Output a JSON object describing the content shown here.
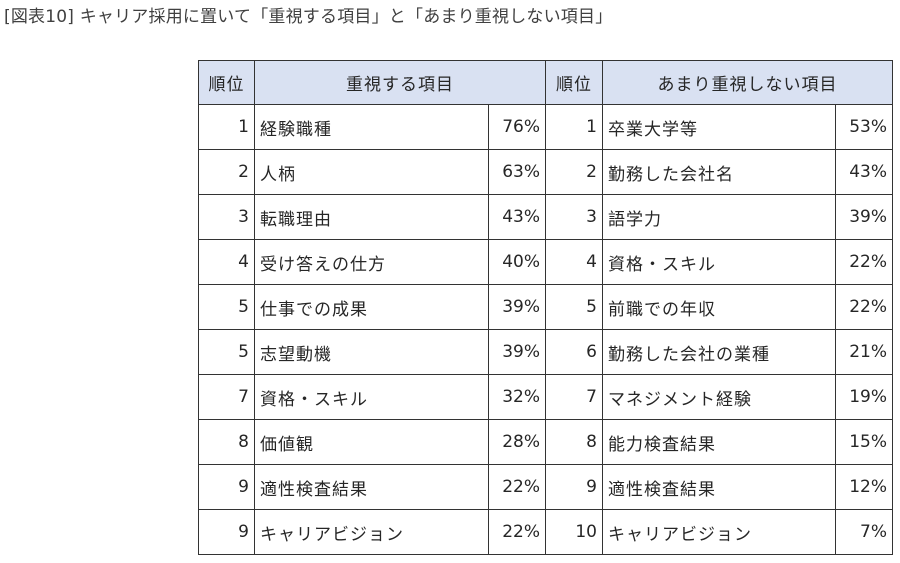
{
  "caption": "[図表10] キャリア採用に置いて「重視する項目」と「あまり重視しない項目」",
  "table": {
    "headers": {
      "rank_left": "順位",
      "item_left": "重視する項目",
      "rank_right": "順位",
      "item_right": "あまり重視しない項目"
    },
    "header_bg": "#d9e1f2",
    "rows": [
      {
        "l_rank": "1",
        "l_item": "経験職種",
        "l_pct": "76%",
        "r_rank": "1",
        "r_item": "卒業大学等",
        "r_pct": "53%"
      },
      {
        "l_rank": "2",
        "l_item": "人柄",
        "l_pct": "63%",
        "r_rank": "2",
        "r_item": "勤務した会社名",
        "r_pct": "43%"
      },
      {
        "l_rank": "3",
        "l_item": "転職理由",
        "l_pct": "43%",
        "r_rank": "3",
        "r_item": "語学力",
        "r_pct": "39%"
      },
      {
        "l_rank": "4",
        "l_item": "受け答えの仕方",
        "l_pct": "40%",
        "r_rank": "4",
        "r_item": "資格・スキル",
        "r_pct": "22%"
      },
      {
        "l_rank": "5",
        "l_item": "仕事での成果",
        "l_pct": "39%",
        "r_rank": "5",
        "r_item": "前職での年収",
        "r_pct": "22%"
      },
      {
        "l_rank": "5",
        "l_item": "志望動機",
        "l_pct": "39%",
        "r_rank": "6",
        "r_item": "勤務した会社の業種",
        "r_pct": "21%"
      },
      {
        "l_rank": "7",
        "l_item": "資格・スキル",
        "l_pct": "32%",
        "r_rank": "7",
        "r_item": "マネジメント経験",
        "r_pct": "19%"
      },
      {
        "l_rank": "8",
        "l_item": "価値観",
        "l_pct": "28%",
        "r_rank": "8",
        "r_item": "能力検査結果",
        "r_pct": "15%"
      },
      {
        "l_rank": "9",
        "l_item": "適性検査結果",
        "l_pct": "22%",
        "r_rank": "9",
        "r_item": "適性検査結果",
        "r_pct": "12%"
      },
      {
        "l_rank": "9",
        "l_item": "キャリアビジョン",
        "l_pct": "22%",
        "r_rank": "10",
        "r_item": "キャリアビジョン",
        "r_pct": "7%"
      }
    ]
  }
}
